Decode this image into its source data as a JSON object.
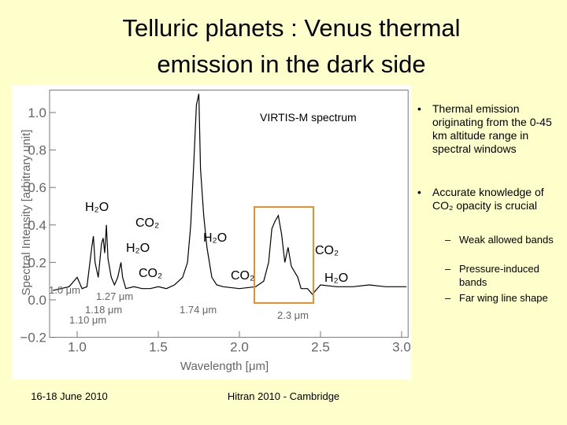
{
  "slide": {
    "title_lines": [
      "Telluric planets : Venus thermal",
      "emission in the dark side"
    ],
    "bullets": [
      {
        "text": "Thermal emission originating from the 0-45 km altitude range in spectral windows",
        "sub": []
      },
      {
        "text": "Accurate knowledge of CO₂ opacity is crucial",
        "sub": [
          "Weak allowed bands",
          "Pressure-induced bands",
          "Far wing line shape"
        ]
      }
    ],
    "footer_left": "16-18 June 2010",
    "footer_center": "Hitran 2010 - Cambridge"
  },
  "chart_data": {
    "type": "line",
    "x_label": "Wavelength [μm]",
    "y_label": "Spectral Intensity [arbitrary unit]",
    "annotations": [
      "VIRTIS-M spectrum",
      "H₂O",
      "CO₂",
      "H₂O",
      "H₂O",
      "CO₂",
      "CO₂",
      "CO₂",
      "H₂O",
      "1.0 μm",
      "1.27 μm",
      "1.18 μm",
      "1.10 μm",
      "1.74 μm",
      "2.3 μm"
    ],
    "x": [
      0.85,
      0.9,
      0.95,
      1.0,
      1.03,
      1.06,
      1.09,
      1.1,
      1.11,
      1.13,
      1.15,
      1.16,
      1.17,
      1.18,
      1.19,
      1.21,
      1.23,
      1.25,
      1.27,
      1.28,
      1.3,
      1.35,
      1.4,
      1.45,
      1.5,
      1.55,
      1.6,
      1.65,
      1.68,
      1.7,
      1.72,
      1.735,
      1.75,
      1.76,
      1.78,
      1.8,
      1.83,
      1.86,
      1.9,
      2.0,
      2.1,
      2.15,
      2.18,
      2.2,
      2.22,
      2.24,
      2.26,
      2.28,
      2.3,
      2.32,
      2.34,
      2.36,
      2.38,
      2.42,
      2.45,
      2.5,
      2.6,
      2.7,
      2.8,
      2.9,
      3.0,
      3.03
    ],
    "series": [
      {
        "name": "VIRTIS-M",
        "color": "#000000",
        "values": [
          0.05,
          0.06,
          0.07,
          0.12,
          0.06,
          0.07,
          0.28,
          0.34,
          0.2,
          0.12,
          0.3,
          0.33,
          0.25,
          0.4,
          0.22,
          0.12,
          0.08,
          0.12,
          0.2,
          0.12,
          0.06,
          0.07,
          0.06,
          0.06,
          0.07,
          0.06,
          0.08,
          0.12,
          0.2,
          0.4,
          0.75,
          1.04,
          1.1,
          0.7,
          0.45,
          0.28,
          0.12,
          0.08,
          0.07,
          0.06,
          0.07,
          0.1,
          0.2,
          0.38,
          0.42,
          0.45,
          0.35,
          0.2,
          0.28,
          0.18,
          0.15,
          0.12,
          0.06,
          0.06,
          0.03,
          0.08,
          0.07,
          0.07,
          0.08,
          0.07,
          0.07,
          0.07
        ]
      }
    ],
    "xlim": [
      0.83,
      3.04
    ],
    "ylim": [
      -0.2,
      1.12
    ],
    "xticks": [
      {
        "value": 1,
        "label": "1.0"
      },
      1.5,
      {
        "value": 2,
        "label": "2.0"
      },
      2.5,
      {
        "value": 3,
        "label": "3.0"
      }
    ],
    "yticks": [
      {
        "value": -0.2,
        "label": "−0.2"
      },
      {
        "value": 0,
        "label": "0.0"
      },
      0.2,
      0.4,
      0.6,
      0.8,
      {
        "value": 1,
        "label": "1.0"
      }
    ],
    "highlight_color": "#e8902a"
  }
}
